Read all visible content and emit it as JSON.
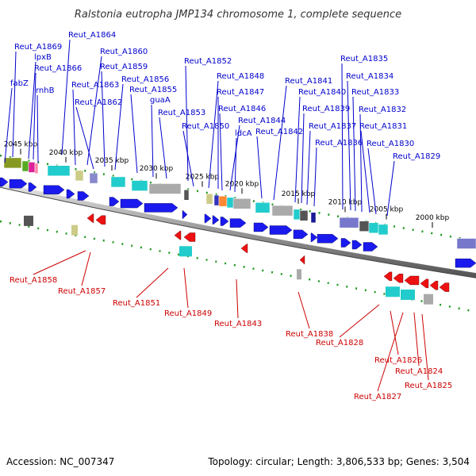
{
  "title": "Ralstonia eutropha JMP134 chromosome 1, complete sequence",
  "footer": {
    "accession": "Accession: NC_007347",
    "summary": "Topology: circular; Length: 3,806,533 bp; Genes: 3,504"
  },
  "colors": {
    "forward_label": "#0000cc",
    "reverse_label": "#cc0000",
    "forward_gene": "#1a1aee",
    "reverse_gene": "#ee1111",
    "backbone": "#888888",
    "tick": "#228822",
    "cyan_feature": "#33cccc",
    "gray_feature": "#aaaaaa"
  },
  "kbp_ticks": [
    "2045 kbp",
    "2040 kbp",
    "2035 kbp",
    "2030 kbp",
    "2025 kbp",
    "2020 kbp",
    "2015 kbp",
    "2010 kbp",
    "2005 kbp",
    "2000 kbp"
  ],
  "forward_labels": [
    "Reut_A1864",
    "Reut_A1869",
    "lpxB",
    "Reut_A1866",
    "fabZ",
    "rnhB",
    "Reut_A1860",
    "Reut_A1859",
    "Reut_A1863",
    "Reut_A1856",
    "Reut_A1855",
    "Reut_A1862",
    "guaA",
    "Reut_A1853",
    "Reut_A1852",
    "Reut_A1848",
    "Reut_A1847",
    "Reut_A1846",
    "Reut_A1850",
    "Reut_A1844",
    "ldcA",
    "Reut_A1842",
    "Reut_A1841",
    "Reut_A1840",
    "Reut_A1839",
    "Reut_A1837",
    "Reut_A1836",
    "Reut_A1835",
    "Reut_A1834",
    "Reut_A1833",
    "Reut_A1832",
    "Reut_A1831",
    "Reut_A1830",
    "Reut_A1829"
  ],
  "reverse_labels": [
    "Reut_A1858",
    "Reut_A1857",
    "Reut_A1851",
    "Reut_A1849",
    "Reut_A1843",
    "Reut_A1838",
    "Reut_A1828",
    "Reut_A1826",
    "Reut_A1824",
    "Reut_A1825",
    "Reut_A1827"
  ]
}
